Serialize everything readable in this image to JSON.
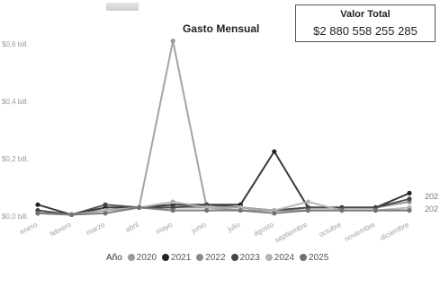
{
  "report": {
    "title": "Gasto Mensual",
    "kpi_label": "Valor Total",
    "kpi_value": "$2 880 558 255 285"
  },
  "legend": {
    "title": "Año"
  },
  "colors": {
    "2020": "#9a9a9a",
    "2021": "#222222",
    "2022": "#8a8a8a",
    "2023": "#444444",
    "2024": "#b4b4b4",
    "2025": "#727272"
  },
  "chart_data": {
    "type": "line",
    "title": "Gasto Mensual",
    "xlabel": "",
    "ylabel": "",
    "ylim": [
      0,
      0.64
    ],
    "y_ticks": [
      0,
      0.2,
      0.4,
      0.6
    ],
    "y_tick_labels": [
      "$0,0 bill.",
      "$0,2 bill.",
      "$0,4 bill.",
      "$0,6 bill."
    ],
    "grid": false,
    "legend_position": "bottom",
    "categories": [
      "enero",
      "febrero",
      "marzo",
      "abril",
      "mayo",
      "junio",
      "julio",
      "agosto",
      "septiembre",
      "octubre",
      "noviembre",
      "diciembre"
    ],
    "series": [
      {
        "name": "2020",
        "values": [
          0.01,
          0.005,
          0.02,
          0.03,
          0.61,
          0.03,
          0.02,
          0.02,
          0.02,
          0.02,
          0.02,
          0.02
        ]
      },
      {
        "name": "2021",
        "values": [
          0.04,
          0.005,
          0.03,
          0.03,
          0.04,
          0.04,
          0.04,
          0.225,
          0.03,
          0.03,
          0.03,
          0.08
        ]
      },
      {
        "name": "2022",
        "values": [
          0.02,
          0.005,
          0.02,
          0.03,
          0.03,
          0.03,
          0.03,
          0.02,
          0.03,
          0.03,
          0.03,
          0.05
        ]
      },
      {
        "name": "2023",
        "values": [
          0.02,
          0.005,
          0.04,
          0.03,
          0.03,
          0.04,
          0.03,
          0.02,
          0.03,
          0.03,
          0.03,
          0.06
        ]
      },
      {
        "name": "2024",
        "values": [
          0.01,
          0.005,
          0.02,
          0.03,
          0.05,
          0.03,
          0.03,
          0.02,
          0.05,
          0.02,
          0.02,
          0.03
        ]
      },
      {
        "name": "2025",
        "values": [
          0.01,
          0.005,
          0.01,
          0.03,
          0.02,
          0.02,
          0.02,
          0.01,
          0.02,
          0.02,
          0.02,
          0.02
        ]
      }
    ],
    "end_labels": [
      "202",
      "202"
    ]
  }
}
